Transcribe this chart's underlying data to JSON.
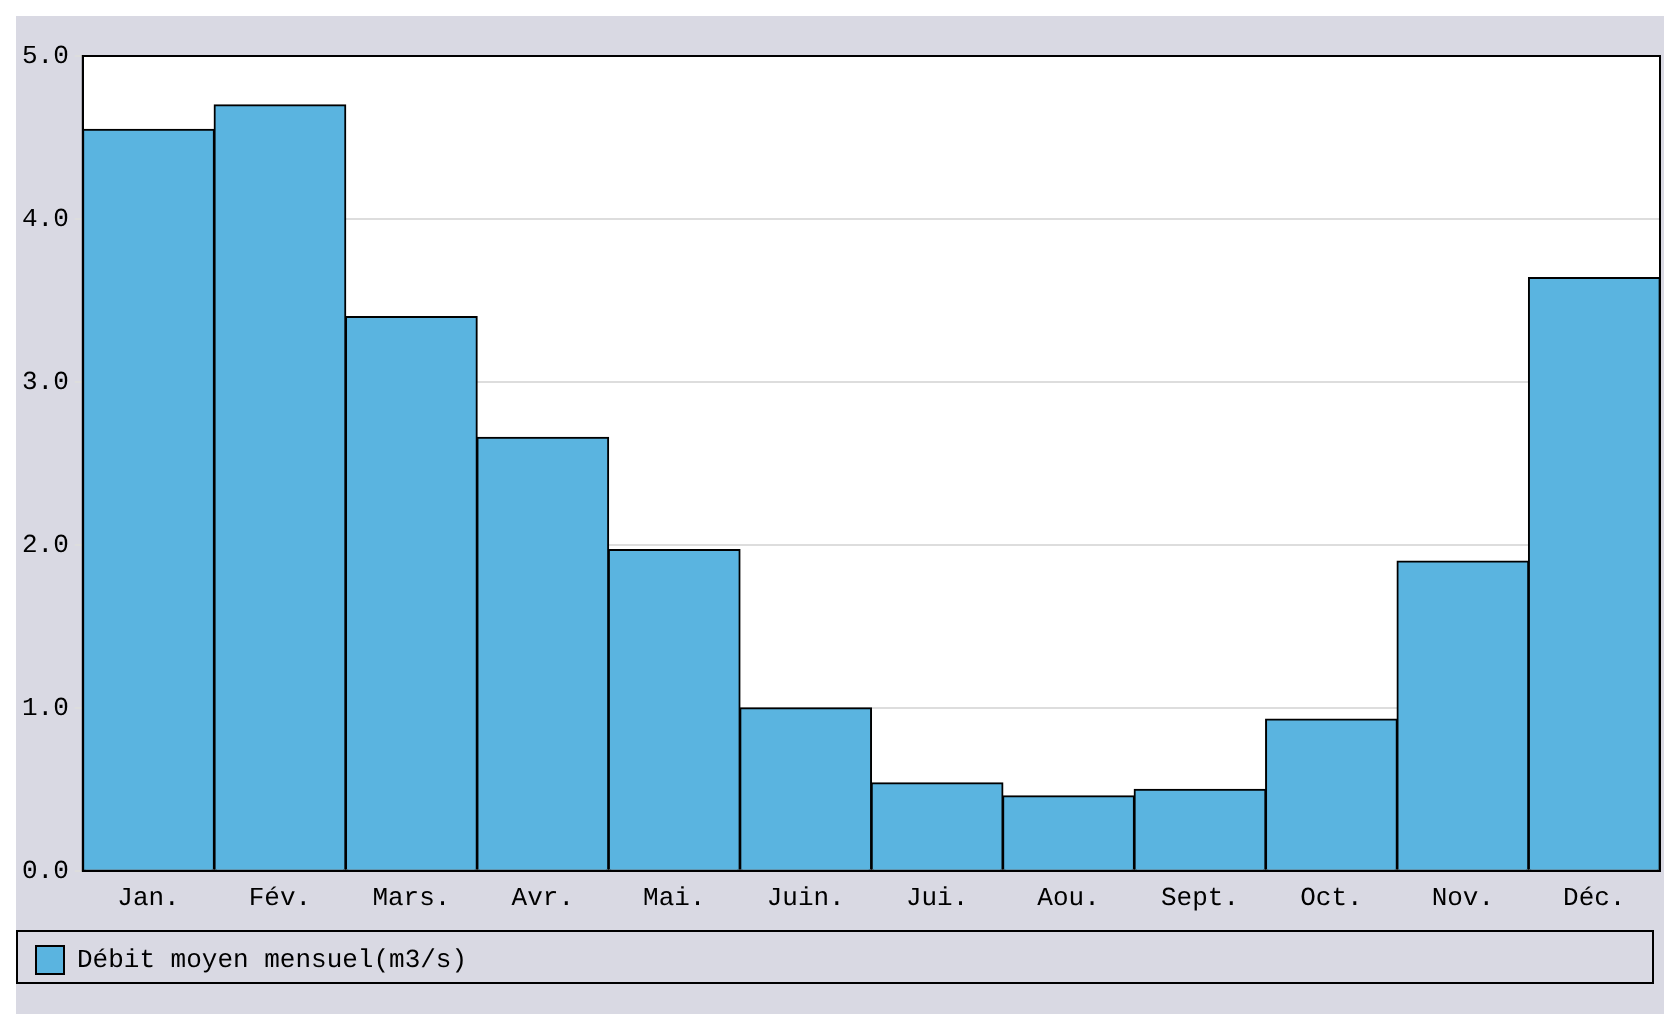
{
  "chart_data": {
    "type": "bar",
    "categories": [
      "Jan.",
      "Fév.",
      "Mars.",
      "Avr.",
      "Mai.",
      "Juin.",
      "Jui.",
      "Aou.",
      "Sept.",
      "Oct.",
      "Nov.",
      "Déc."
    ],
    "series": [
      {
        "name": "Débit moyen mensuel(m3/s)",
        "color": "#5ab4e0",
        "values": [
          4.55,
          4.7,
          3.4,
          2.66,
          1.97,
          1.0,
          0.54,
          0.46,
          0.5,
          0.93,
          1.9,
          3.64
        ]
      }
    ],
    "ylim": [
      0,
      5
    ],
    "yticks": [
      {
        "value": 0,
        "label": "0.0"
      },
      {
        "value": 1,
        "label": "1.0"
      },
      {
        "value": 2,
        "label": "2.0"
      },
      {
        "value": 3,
        "label": "3.0"
      },
      {
        "value": 4,
        "label": "4.0"
      },
      {
        "value": 5,
        "label": "5.0"
      }
    ],
    "grid": "y",
    "legend": "bottom"
  }
}
